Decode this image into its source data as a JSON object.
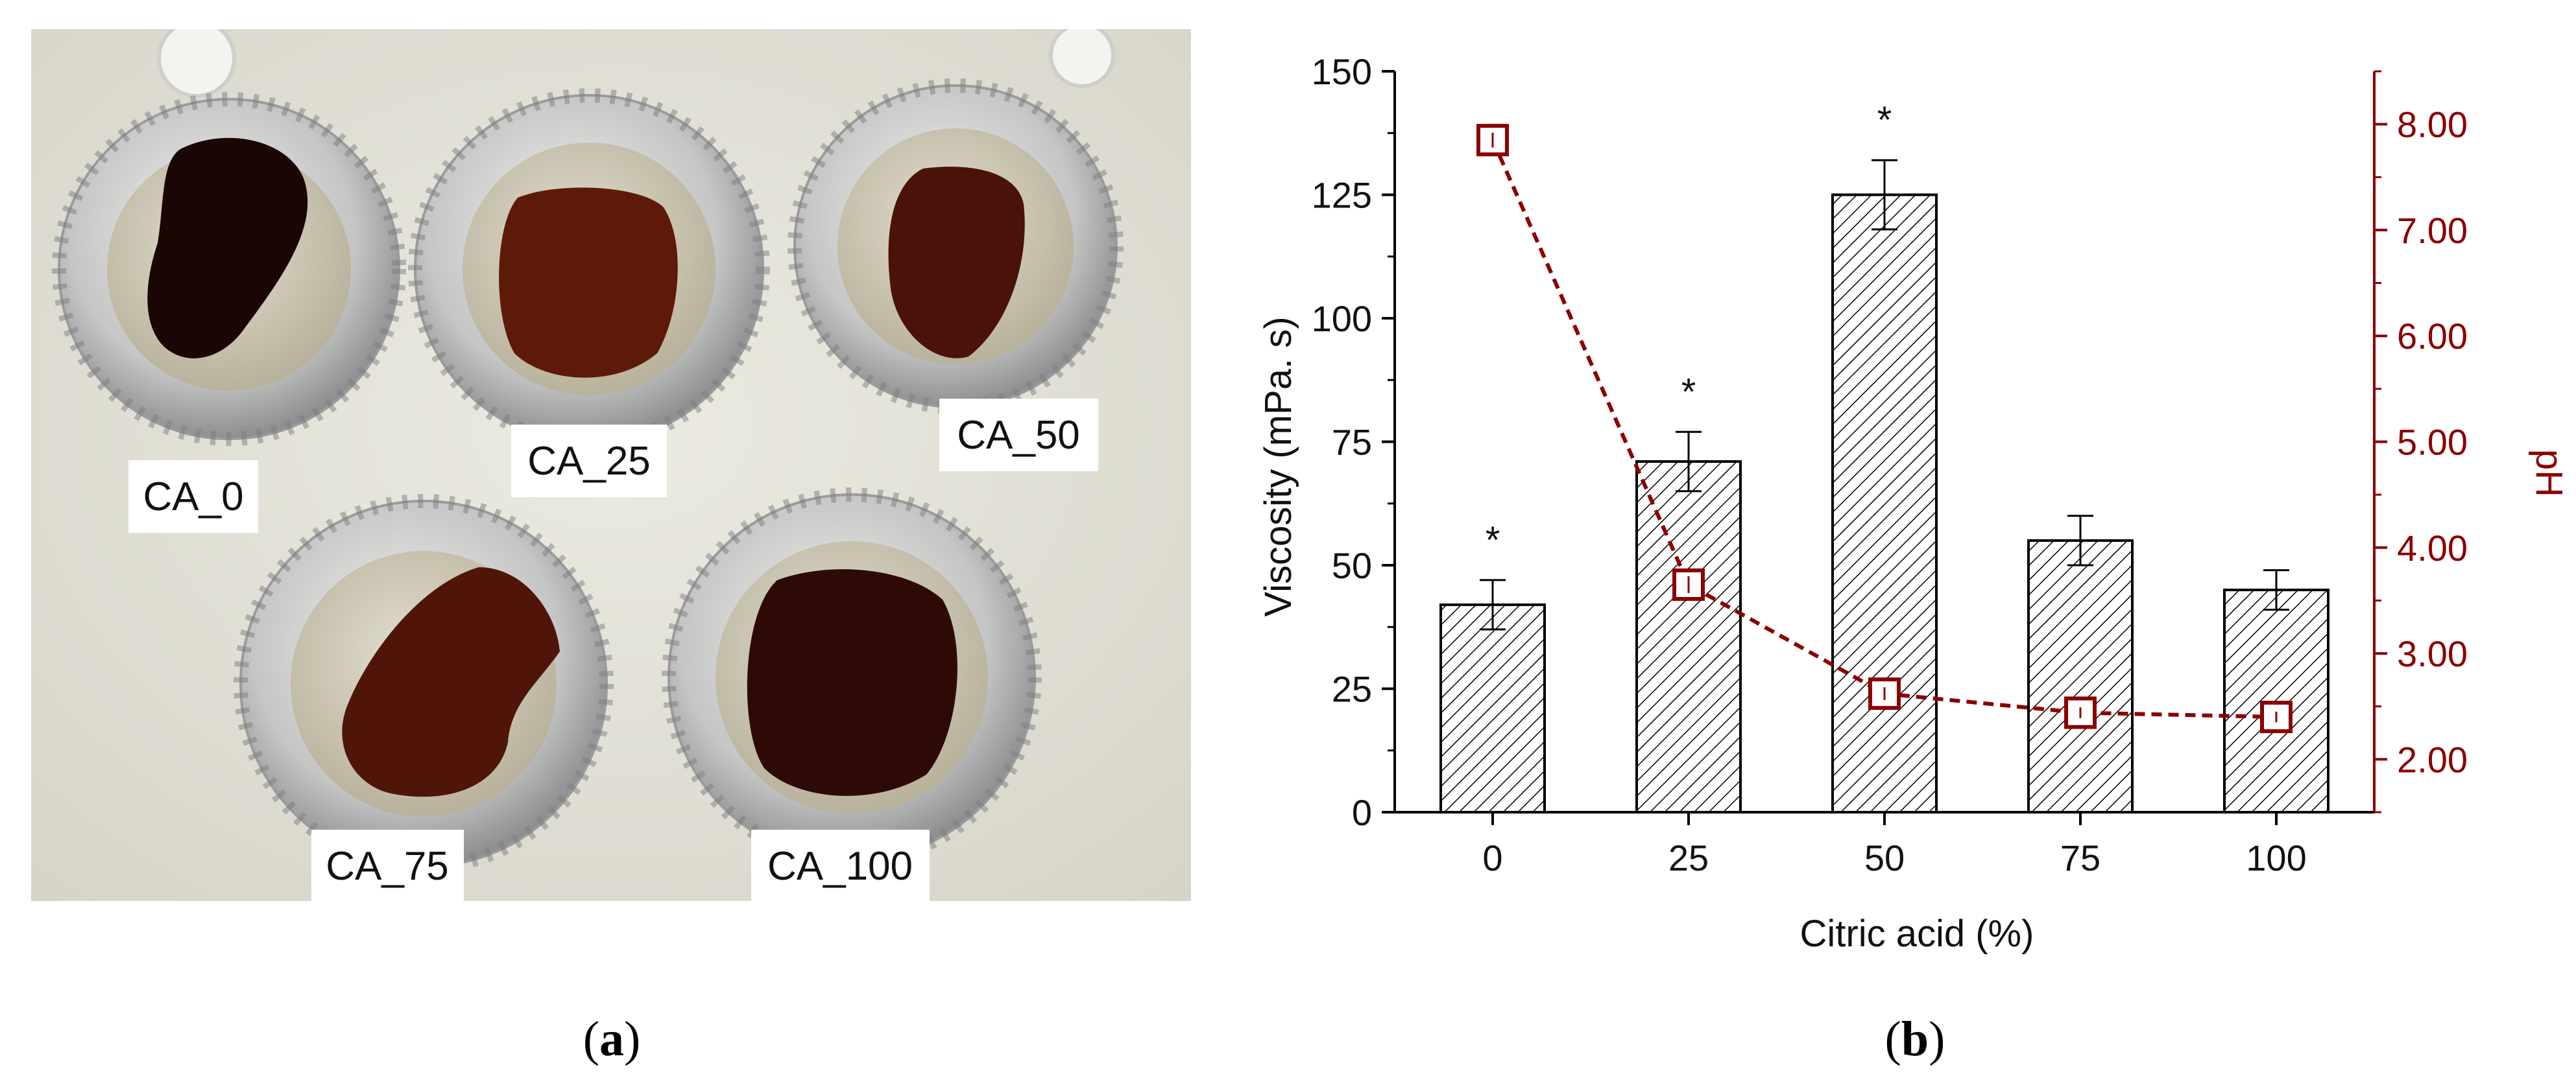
{
  "figure": {
    "photo_panel": {
      "caption_label": "a",
      "samples": [
        {
          "label": "CA_0",
          "color": "#1a0605"
        },
        {
          "label": "CA_25",
          "color": "#5e1a08"
        },
        {
          "label": "CA_50",
          "color": "#4a1208"
        },
        {
          "label": "CA_75",
          "color": "#4e1508"
        },
        {
          "label": "CA_100",
          "color": "#2e0a06"
        }
      ]
    },
    "chart_panel": {
      "caption_label": "b"
    }
  },
  "chart_data": {
    "type": "bar",
    "xlabel": "Citric acid (%)",
    "ylabel": "Viscosity (mPa. s)",
    "y2label": "pH",
    "categories": [
      "0",
      "25",
      "50",
      "75",
      "100"
    ],
    "ylim": [
      0,
      150
    ],
    "yticks": [
      "0",
      "25",
      "50",
      "75",
      "100",
      "125",
      "150"
    ],
    "y2lim": [
      1.5,
      8.5
    ],
    "y2ticks": [
      "2.00",
      "3.00",
      "4.00",
      "5.00",
      "6.00",
      "7.00",
      "8.00"
    ],
    "series": [
      {
        "name": "Viscosity",
        "axis": "left",
        "type": "bar",
        "hatch": true,
        "values": [
          42,
          71,
          125,
          55,
          45
        ],
        "errors": [
          5,
          6,
          7,
          5,
          4
        ],
        "annotations": [
          "*",
          "*",
          "*",
          "",
          ""
        ]
      },
      {
        "name": "pH",
        "axis": "right",
        "type": "line",
        "style": "dashed",
        "marker": "square",
        "color": "#8b0000",
        "values": [
          7.85,
          3.65,
          2.62,
          2.44,
          2.4
        ],
        "errors": [
          0.07,
          0.08,
          0.06,
          0.05,
          0.05
        ]
      }
    ]
  }
}
